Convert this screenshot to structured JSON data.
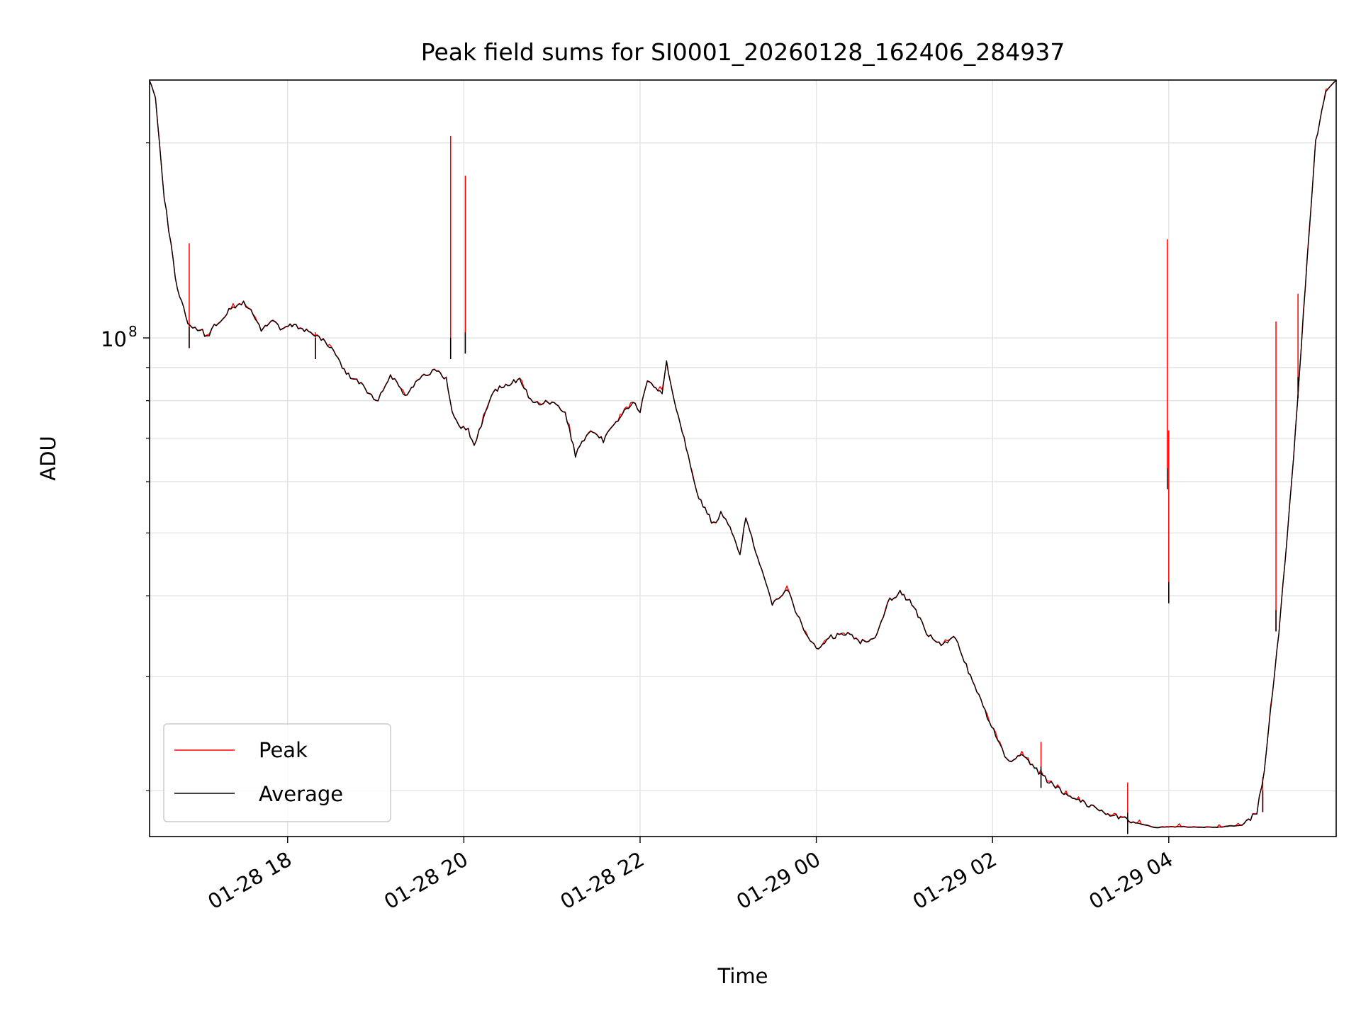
{
  "chart_data": {
    "type": "line",
    "title": "Peak field sums for SI0001_20260128_162406_284937",
    "xlabel": "Time",
    "ylabel": "ADU",
    "yscale": "log",
    "ylim": [
      17000000,
      250000000
    ],
    "xlim": [
      "2026-01-28 16:26",
      "2026-01-29 05:54"
    ],
    "y_tick_labels": [
      {
        "value": 100000000,
        "base": "10",
        "exp": "8"
      }
    ],
    "y_minor_ticks": [
      20000000,
      30000000,
      40000000,
      50000000,
      60000000,
      70000000,
      80000000,
      90000000,
      200000000
    ],
    "x_ticks": [
      {
        "time": "2026-01-28 18:00",
        "label": "01-28 18"
      },
      {
        "time": "2026-01-28 20:00",
        "label": "01-28 20"
      },
      {
        "time": "2026-01-28 22:00",
        "label": "01-28 22"
      },
      {
        "time": "2026-01-29 00:00",
        "label": "01-29 00"
      },
      {
        "time": "2026-01-29 02:00",
        "label": "01-29 02"
      },
      {
        "time": "2026-01-29 04:00",
        "label": "01-29 04"
      }
    ],
    "grid": true,
    "legend": {
      "position": "lower-left"
    },
    "series": [
      {
        "name": "Peak",
        "color": "#ff0000"
      },
      {
        "name": "Average",
        "color": "#000000"
      }
    ],
    "average_points": [
      [
        "2026-01-28 16:26",
        250000000
      ],
      [
        "2026-01-28 16:30",
        235000000
      ],
      [
        "2026-01-28 16:36",
        165000000
      ],
      [
        "2026-01-28 16:45",
        118000000
      ],
      [
        "2026-01-28 16:52",
        106000000
      ],
      [
        "2026-01-28 16:57",
        103000000
      ],
      [
        "2026-01-28 17:02",
        102500000
      ],
      [
        "2026-01-28 17:05",
        100000000
      ],
      [
        "2026-01-28 17:10",
        104000000
      ],
      [
        "2026-01-28 17:20",
        110000000
      ],
      [
        "2026-01-28 17:30",
        113500000
      ],
      [
        "2026-01-28 17:35",
        110000000
      ],
      [
        "2026-01-28 17:42",
        103000000
      ],
      [
        "2026-01-28 17:50",
        106500000
      ],
      [
        "2026-01-28 17:55",
        103000000
      ],
      [
        "2026-01-28 18:03",
        104500000
      ],
      [
        "2026-01-28 18:10",
        103500000
      ],
      [
        "2026-01-28 18:20",
        100500000
      ],
      [
        "2026-01-28 18:30",
        96500000
      ],
      [
        "2026-01-28 18:40",
        88000000
      ],
      [
        "2026-01-28 18:50",
        85000000
      ],
      [
        "2026-01-28 19:00",
        79500000
      ],
      [
        "2026-01-28 19:05",
        83000000
      ],
      [
        "2026-01-28 19:10",
        88000000
      ],
      [
        "2026-01-28 19:20",
        81500000
      ],
      [
        "2026-01-28 19:30",
        87000000
      ],
      [
        "2026-01-28 19:40",
        89000000
      ],
      [
        "2026-01-28 19:48",
        86500000
      ],
      [
        "2026-01-28 19:52",
        76500000
      ],
      [
        "2026-01-28 19:58",
        73000000
      ],
      [
        "2026-01-28 20:03",
        72000000
      ],
      [
        "2026-01-28 20:07",
        68000000
      ],
      [
        "2026-01-28 20:12",
        73500000
      ],
      [
        "2026-01-28 20:20",
        83000000
      ],
      [
        "2026-01-28 20:30",
        84500000
      ],
      [
        "2026-01-28 20:38",
        86500000
      ],
      [
        "2026-01-28 20:47",
        79000000
      ],
      [
        "2026-01-28 21:00",
        79500000
      ],
      [
        "2026-01-28 21:09",
        76500000
      ],
      [
        "2026-01-28 21:16",
        66000000
      ],
      [
        "2026-01-28 21:25",
        71500000
      ],
      [
        "2026-01-28 21:35",
        69500000
      ],
      [
        "2026-01-28 21:45",
        75000000
      ],
      [
        "2026-01-28 21:55",
        79500000
      ],
      [
        "2026-01-28 22:00",
        77000000
      ],
      [
        "2026-01-28 22:05",
        85500000
      ],
      [
        "2026-01-28 22:15",
        82500000
      ],
      [
        "2026-01-28 22:18",
        91500000
      ],
      [
        "2026-01-28 22:22",
        82500000
      ],
      [
        "2026-01-28 22:30",
        70000000
      ],
      [
        "2026-01-28 22:40",
        56500000
      ],
      [
        "2026-01-28 22:50",
        51500000
      ],
      [
        "2026-01-28 22:55",
        53500000
      ],
      [
        "2026-01-28 23:00",
        51500000
      ],
      [
        "2026-01-28 23:08",
        46500000
      ],
      [
        "2026-01-28 23:12",
        53000000
      ],
      [
        "2026-01-28 23:20",
        45500000
      ],
      [
        "2026-01-28 23:30",
        39000000
      ],
      [
        "2026-01-28 23:40",
        41000000
      ],
      [
        "2026-01-28 23:50",
        36000000
      ],
      [
        "2026-01-29 00:00",
        33000000
      ],
      [
        "2026-01-29 00:10",
        34500000
      ],
      [
        "2026-01-29 00:20",
        35000000
      ],
      [
        "2026-01-29 00:30",
        34000000
      ],
      [
        "2026-01-29 00:40",
        34500000
      ],
      [
        "2026-01-29 00:50",
        39500000
      ],
      [
        "2026-01-29 00:57",
        40500000
      ],
      [
        "2026-01-29 01:05",
        39000000
      ],
      [
        "2026-01-29 01:15",
        35000000
      ],
      [
        "2026-01-29 01:25",
        33500000
      ],
      [
        "2026-01-29 01:35",
        34500000
      ],
      [
        "2026-01-29 01:45",
        30000000
      ],
      [
        "2026-01-29 01:55",
        26500000
      ],
      [
        "2026-01-29 02:05",
        23500000
      ],
      [
        "2026-01-29 02:10",
        22200000
      ],
      [
        "2026-01-29 02:20",
        22600000
      ],
      [
        "2026-01-29 02:30",
        21500000
      ],
      [
        "2026-01-29 02:40",
        20500000
      ],
      [
        "2026-01-29 02:50",
        19800000
      ],
      [
        "2026-01-29 03:00",
        19300000
      ],
      [
        "2026-01-29 03:10",
        18800000
      ],
      [
        "2026-01-29 03:20",
        18400000
      ],
      [
        "2026-01-29 03:30",
        18100000
      ],
      [
        "2026-01-29 03:40",
        17800000
      ],
      [
        "2026-01-29 03:50",
        17550000
      ],
      [
        "2026-01-29 04:10",
        17600000
      ],
      [
        "2026-01-29 04:30",
        17550000
      ],
      [
        "2026-01-29 04:50",
        17700000
      ],
      [
        "2026-01-29 05:00",
        18500000
      ],
      [
        "2026-01-29 05:05",
        21500000
      ],
      [
        "2026-01-29 05:15",
        35000000
      ],
      [
        "2026-01-29 05:25",
        65000000
      ],
      [
        "2026-01-29 05:33",
        120000000
      ],
      [
        "2026-01-29 05:40",
        200000000
      ],
      [
        "2026-01-29 05:47",
        240000000
      ],
      [
        "2026-01-29 05:54",
        250000000
      ]
    ],
    "spikes": [
      {
        "time": "2026-01-28 16:53",
        "peak": 140000000,
        "average": 104000000
      },
      {
        "time": "2026-01-28 18:19",
        "peak": 102000000,
        "average": 100000000
      },
      {
        "time": "2026-01-28 19:51",
        "peak": 205000000,
        "average": 100000000
      },
      {
        "time": "2026-01-28 20:01",
        "peak": 178000000,
        "average": 102000000
      },
      {
        "time": "2026-01-29 02:33",
        "peak": 23800000,
        "average": 21800000
      },
      {
        "time": "2026-01-29 03:32",
        "peak": 20600000,
        "average": 18500000
      },
      {
        "time": "2026-01-29 03:59",
        "peak": 142000000,
        "average": 63000000
      },
      {
        "time": "2026-01-29 04:00",
        "peak": 72000000,
        "average": 42000000
      },
      {
        "time": "2026-01-29 05:04",
        "peak": 21000000,
        "average": 20000000
      },
      {
        "time": "2026-01-29 05:13",
        "peak": 106000000,
        "average": 38000000
      },
      {
        "time": "2026-01-29 05:28",
        "peak": 117000000,
        "average": 87000000
      }
    ]
  }
}
